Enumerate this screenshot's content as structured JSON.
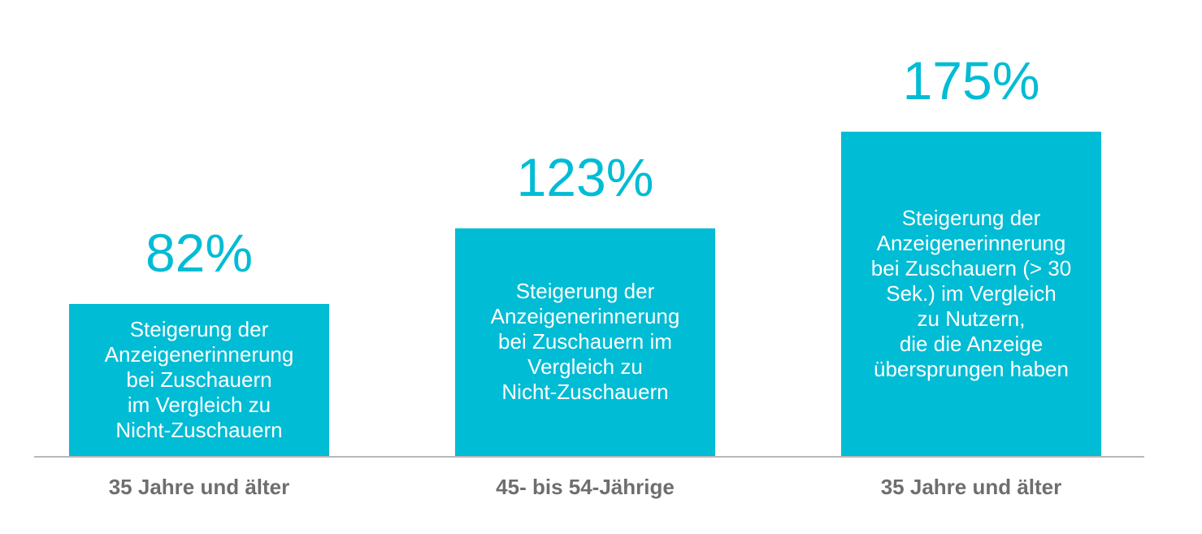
{
  "chart_data": {
    "type": "bar",
    "categories": [
      "35 Jahre und älter",
      "45- bis 54-Jährige",
      "35 Jahre und älter"
    ],
    "values": [
      82,
      123,
      175
    ],
    "value_labels": [
      "82%",
      "123%",
      "175%"
    ],
    "descriptions": [
      "Steigerung der\nAnzeigenerinnerung\nbei Zuschauern\nim Vergleich zu\nNicht-Zuschauern",
      "Steigerung der\nAnzeigenerinnerung\nbei Zuschauern im\nVergleich zu\nNicht-Zuschauern",
      "Steigerung der\nAnzeigenerinnerung\nbei Zuschauern (> 30\nSek.) im Vergleich\nzu Nutzern,\ndie die Anzeige\nübersprungen haben"
    ],
    "ylim": [
      0,
      175
    ],
    "grid": false,
    "colors": {
      "bar": "#00bcd4",
      "value_text": "#00bcd4",
      "category_text": "#6e6e6e",
      "axis": "#b9b9b9"
    }
  }
}
